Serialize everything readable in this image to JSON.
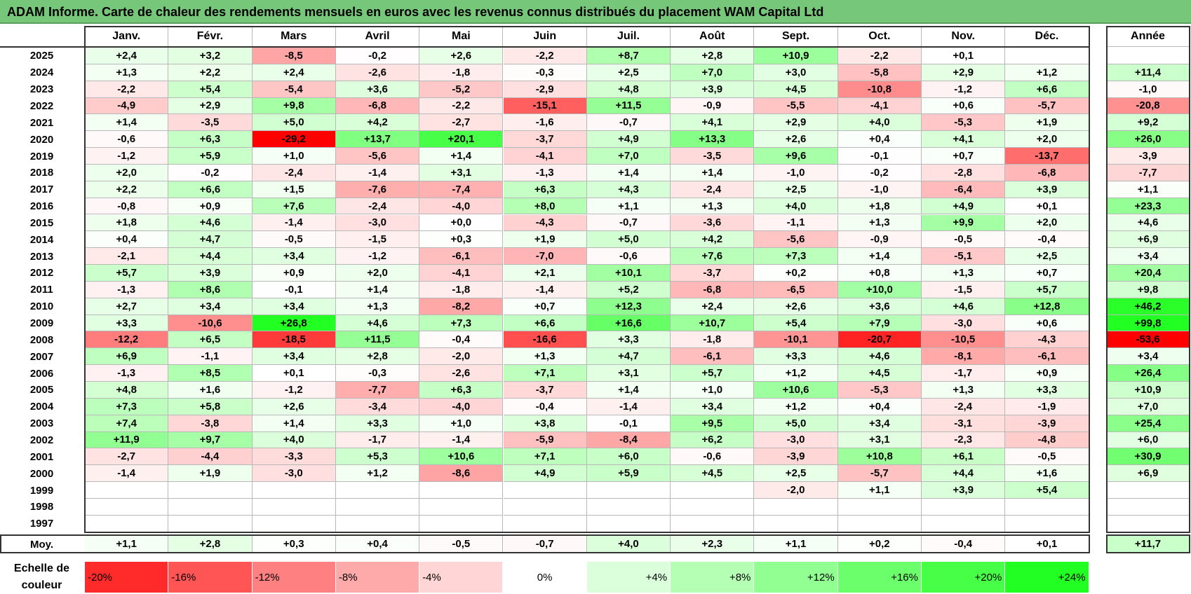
{
  "title": "ADAM Informe. Carte de chaleur des rendements mensuels en euros avec les revenus connus distribués du placement WAM Capital Ltd",
  "chart_data": {
    "type": "heatmap",
    "title": "ADAM Informe. Carte de chaleur des rendements mensuels en euros avec les revenus connus distribués du placement WAM Capital Ltd",
    "columns": [
      "Janv.",
      "Févr.",
      "Mars",
      "Avril",
      "Mai",
      "Juin",
      "Juil.",
      "Août",
      "Sept.",
      "Oct.",
      "Nov.",
      "Déc."
    ],
    "year_header": "Année",
    "rows": [
      {
        "year": "2025",
        "values": [
          "+2,4",
          "+3,2",
          "-8,5",
          "-0,2",
          "+2,6",
          "-2,2",
          "+8,7",
          "+2,8",
          "+10,9",
          "-2,2",
          "+0,1",
          ""
        ],
        "annual": ""
      },
      {
        "year": "2024",
        "values": [
          "+1,3",
          "+2,2",
          "+2,4",
          "-2,6",
          "-1,8",
          "-0,3",
          "+2,5",
          "+7,0",
          "+3,0",
          "-5,8",
          "+2,9",
          "+1,2"
        ],
        "annual": "+11,4"
      },
      {
        "year": "2023",
        "values": [
          "-2,2",
          "+5,4",
          "-5,4",
          "+3,6",
          "-5,2",
          "-2,9",
          "+4,8",
          "+3,9",
          "+4,5",
          "-10,8",
          "-1,2",
          "+6,6"
        ],
        "annual": "-1,0"
      },
      {
        "year": "2022",
        "values": [
          "-4,9",
          "+2,9",
          "+9,8",
          "-6,8",
          "-2,2",
          "-15,1",
          "+11,5",
          "-0,9",
          "-5,5",
          "-4,1",
          "+0,6",
          "-5,7"
        ],
        "annual": "-20,8"
      },
      {
        "year": "2021",
        "values": [
          "+1,4",
          "-3,5",
          "+5,0",
          "+4,2",
          "-2,7",
          "-1,6",
          "-0,7",
          "+4,1",
          "+2,9",
          "+4,0",
          "-5,3",
          "+1,9"
        ],
        "annual": "+9,2"
      },
      {
        "year": "2020",
        "values": [
          "-0,6",
          "+6,3",
          "-29,2",
          "+13,7",
          "+20,1",
          "-3,7",
          "+4,9",
          "+13,3",
          "+2,6",
          "+0,4",
          "+4,1",
          "+2,0"
        ],
        "annual": "+26,0"
      },
      {
        "year": "2019",
        "values": [
          "-1,2",
          "+5,9",
          "+1,0",
          "-5,6",
          "+1,4",
          "-4,1",
          "+7,0",
          "-3,5",
          "+9,6",
          "-0,1",
          "+0,7",
          "-13,7"
        ],
        "annual": "-3,9"
      },
      {
        "year": "2018",
        "values": [
          "+2,0",
          "-0,2",
          "-2,4",
          "-1,4",
          "+3,1",
          "-1,3",
          "+1,4",
          "+1,4",
          "-1,0",
          "-0,2",
          "-2,8",
          "-6,8"
        ],
        "annual": "-7,7"
      },
      {
        "year": "2017",
        "values": [
          "+2,2",
          "+6,6",
          "+1,5",
          "-7,6",
          "-7,4",
          "+6,3",
          "+4,3",
          "-2,4",
          "+2,5",
          "-1,0",
          "-6,4",
          "+3,9"
        ],
        "annual": "+1,1"
      },
      {
        "year": "2016",
        "values": [
          "-0,8",
          "+0,9",
          "+7,6",
          "-2,4",
          "-4,0",
          "+8,0",
          "+1,1",
          "+1,3",
          "+4,0",
          "+1,8",
          "+4,9",
          "+0,1"
        ],
        "annual": "+23,3"
      },
      {
        "year": "2015",
        "values": [
          "+1,8",
          "+4,6",
          "-1,4",
          "-3,0",
          "+0,0",
          "-4,3",
          "-0,7",
          "-3,6",
          "-1,1",
          "+1,3",
          "+9,9",
          "+2,0"
        ],
        "annual": "+4,6"
      },
      {
        "year": "2014",
        "values": [
          "+0,4",
          "+4,7",
          "-0,5",
          "-1,5",
          "+0,3",
          "+1,9",
          "+5,0",
          "+4,2",
          "-5,6",
          "-0,9",
          "-0,5",
          "-0,4"
        ],
        "annual": "+6,9"
      },
      {
        "year": "2013",
        "values": [
          "-2,1",
          "+4,4",
          "+3,4",
          "-1,2",
          "-6,1",
          "-7,0",
          "-0,6",
          "+7,6",
          "+7,3",
          "+1,4",
          "-5,1",
          "+2,5"
        ],
        "annual": "+3,4"
      },
      {
        "year": "2012",
        "values": [
          "+5,7",
          "+3,9",
          "+0,9",
          "+2,0",
          "-4,1",
          "+2,1",
          "+10,1",
          "-3,7",
          "+0,2",
          "+0,8",
          "+1,3",
          "+0,7"
        ],
        "annual": "+20,4"
      },
      {
        "year": "2011",
        "values": [
          "-1,3",
          "+8,6",
          "-0,1",
          "+1,4",
          "-1,8",
          "-1,4",
          "+5,2",
          "-6,8",
          "-6,5",
          "+10,0",
          "-1,5",
          "+5,7"
        ],
        "annual": "+9,8"
      },
      {
        "year": "2010",
        "values": [
          "+2,7",
          "+3,4",
          "+3,4",
          "+1,3",
          "-8,2",
          "+0,7",
          "+12,3",
          "+2,4",
          "+2,6",
          "+3,6",
          "+4,6",
          "+12,8"
        ],
        "annual": "+46,2"
      },
      {
        "year": "2009",
        "values": [
          "+3,3",
          "-10,6",
          "+26,8",
          "+4,6",
          "+7,3",
          "+6,6",
          "+16,6",
          "+10,7",
          "+5,4",
          "+7,9",
          "-3,0",
          "+0,6"
        ],
        "annual": "+99,8"
      },
      {
        "year": "2008",
        "values": [
          "-12,2",
          "+6,5",
          "-18,5",
          "+11,5",
          "-0,4",
          "-16,6",
          "+3,3",
          "-1,8",
          "-10,1",
          "-20,7",
          "-10,5",
          "-4,3"
        ],
        "annual": "-53,6"
      },
      {
        "year": "2007",
        "values": [
          "+6,9",
          "-1,1",
          "+3,4",
          "+2,8",
          "-2,0",
          "+1,3",
          "+4,7",
          "-6,1",
          "+3,3",
          "+4,6",
          "-8,1",
          "-6,1"
        ],
        "annual": "+3,4"
      },
      {
        "year": "2006",
        "values": [
          "-1,3",
          "+8,5",
          "+0,1",
          "-0,3",
          "-2,6",
          "+7,1",
          "+3,1",
          "+5,7",
          "+1,2",
          "+4,5",
          "-1,7",
          "+0,9"
        ],
        "annual": "+26,4"
      },
      {
        "year": "2005",
        "values": [
          "+4,8",
          "+1,6",
          "-1,2",
          "-7,7",
          "+6,3",
          "-3,7",
          "+1,4",
          "+1,0",
          "+10,6",
          "-5,3",
          "+1,3",
          "+3,3"
        ],
        "annual": "+10,9"
      },
      {
        "year": "2004",
        "values": [
          "+7,3",
          "+5,8",
          "+2,6",
          "-3,4",
          "-4,0",
          "-0,4",
          "-1,4",
          "+3,4",
          "+1,2",
          "+0,4",
          "-2,4",
          "-1,9"
        ],
        "annual": "+7,0"
      },
      {
        "year": "2003",
        "values": [
          "+7,4",
          "-3,8",
          "+1,4",
          "+3,3",
          "+1,0",
          "+3,8",
          "-0,1",
          "+9,5",
          "+5,0",
          "+3,4",
          "-3,1",
          "-3,9"
        ],
        "annual": "+25,4"
      },
      {
        "year": "2002",
        "values": [
          "+11,9",
          "+9,7",
          "+4,0",
          "-1,7",
          "-1,4",
          "-5,9",
          "-8,4",
          "+6,2",
          "-3,0",
          "+3,1",
          "-2,3",
          "-4,8"
        ],
        "annual": "+6,0"
      },
      {
        "year": "2001",
        "values": [
          "-2,7",
          "-4,4",
          "-3,3",
          "+5,3",
          "+10,6",
          "+7,1",
          "+6,0",
          "-0,6",
          "-3,9",
          "+10,8",
          "+6,1",
          "-0,5"
        ],
        "annual": "+30,9"
      },
      {
        "year": "2000",
        "values": [
          "-1,4",
          "+1,9",
          "-3,0",
          "+1,2",
          "-8,6",
          "+4,9",
          "+5,9",
          "+4,5",
          "+2,5",
          "-5,7",
          "+4,4",
          "+1,6"
        ],
        "annual": "+6,9"
      },
      {
        "year": "1999",
        "values": [
          "",
          "",
          "",
          "",
          "",
          "",
          "",
          "",
          "-2,0",
          "+1,1",
          "+3,9",
          "+5,4"
        ],
        "annual": ""
      },
      {
        "year": "1998",
        "values": [
          "",
          "",
          "",
          "",
          "",
          "",
          "",
          "",
          "",
          "",
          "",
          ""
        ],
        "annual": ""
      },
      {
        "year": "1997",
        "values": [
          "",
          "",
          "",
          "",
          "",
          "",
          "",
          "",
          "",
          "",
          "",
          ""
        ],
        "annual": ""
      }
    ],
    "average": {
      "label": "Moy.",
      "values": [
        "+1,1",
        "+2,8",
        "+0,3",
        "+0,4",
        "-0,5",
        "-0,7",
        "+4,0",
        "+2,3",
        "+1,1",
        "+0,2",
        "-0,4",
        "+0,1"
      ],
      "annual": "+11,7"
    },
    "scale": {
      "label_line1": "Echelle de",
      "label_line2": "couleur",
      "steps": [
        {
          "label": "-20%",
          "value": -20
        },
        {
          "label": "-16%",
          "value": -16
        },
        {
          "label": "-12%",
          "value": -12
        },
        {
          "label": "-8%",
          "value": -8
        },
        {
          "label": "-4%",
          "value": -4
        },
        {
          "label": "0%",
          "value": 0
        },
        {
          "label": "+4%",
          "value": 4
        },
        {
          "label": "+8%",
          "value": 8
        },
        {
          "label": "+12%",
          "value": 12
        },
        {
          "label": "+16%",
          "value": 16
        },
        {
          "label": "+20%",
          "value": 20
        },
        {
          "label": "+24%",
          "value": 24
        }
      ]
    },
    "colors": {
      "negative_max": "#ff0000",
      "neutral": "#ffffff",
      "positive_max": "#22ff22",
      "title_bar": "#77c77a"
    }
  }
}
